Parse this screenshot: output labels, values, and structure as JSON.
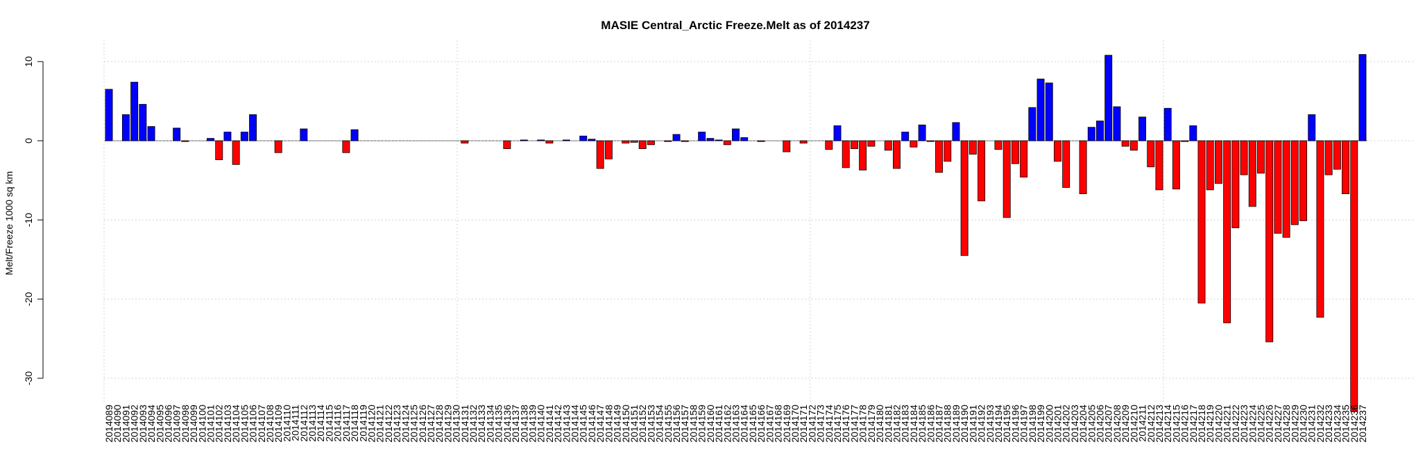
{
  "chart_data": {
    "type": "bar",
    "title": "MASIE Central_Arctic Freeze.Melt as of 2014237",
    "y_label": "Melt/Freeze 1000 sq km",
    "categories": [
      "2014089",
      "2014090",
      "2014091",
      "2014092",
      "2014093",
      "2014094",
      "2014095",
      "2014096",
      "2014097",
      "2014098",
      "2014099",
      "2014100",
      "2014101",
      "2014102",
      "2014103",
      "2014104",
      "2014105",
      "2014106",
      "2014107",
      "2014108",
      "2014109",
      "2014110",
      "2014111",
      "2014112",
      "2014113",
      "2014114",
      "2014115",
      "2014116",
      "2014117",
      "2014118",
      "2014119",
      "2014120",
      "2014121",
      "2014122",
      "2014123",
      "2014124",
      "2014125",
      "2014126",
      "2014127",
      "2014128",
      "2014129",
      "2014130",
      "2014131",
      "2014132",
      "2014133",
      "2014134",
      "2014135",
      "2014136",
      "2014137",
      "2014138",
      "2014139",
      "2014140",
      "2014141",
      "2014142",
      "2014143",
      "2014144",
      "2014145",
      "2014146",
      "2014147",
      "2014148",
      "2014149",
      "2014150",
      "2014151",
      "2014152",
      "2014153",
      "2014154",
      "2014155",
      "2014156",
      "2014157",
      "2014158",
      "2014159",
      "2014160",
      "2014161",
      "2014162",
      "2014163",
      "2014164",
      "2014165",
      "2014166",
      "2014167",
      "2014168",
      "2014169",
      "2014170",
      "2014171",
      "2014172",
      "2014173",
      "2014174",
      "2014175",
      "2014176",
      "2014177",
      "2014178",
      "2014179",
      "2014180",
      "2014181",
      "2014182",
      "2014183",
      "2014184",
      "2014185",
      "2014186",
      "2014187",
      "2014188",
      "2014189",
      "2014190",
      "2014191",
      "2014192",
      "2014193",
      "2014194",
      "2014195",
      "2014196",
      "2014197",
      "2014198",
      "2014199",
      "2014200",
      "2014201",
      "2014202",
      "2014203",
      "2014204",
      "2014205",
      "2014206",
      "2014207",
      "2014208",
      "2014209",
      "2014210",
      "2014211",
      "2014212",
      "2014213",
      "2014214",
      "2014215",
      "2014216",
      "2014217",
      "2014218",
      "2014219",
      "2014220",
      "2014221",
      "2014222",
      "2014223",
      "2014224",
      "2014225",
      "2014226",
      "2014227",
      "2014228",
      "2014229",
      "2014230",
      "2014231",
      "2014232",
      "2014233",
      "2014234",
      "2014235",
      "2014236",
      "2014237"
    ],
    "values": [
      6.5,
      0,
      3.3,
      7.4,
      4.6,
      1.8,
      0,
      0,
      1.6,
      -0.1,
      0,
      0,
      0.3,
      -2.4,
      1.1,
      -3.0,
      1.1,
      3.3,
      0,
      0,
      -1.5,
      0,
      0,
      1.5,
      0,
      0,
      0,
      0,
      -1.5,
      1.4,
      0,
      0,
      0,
      0,
      0,
      0,
      0,
      0,
      0,
      0,
      0,
      0,
      -0.3,
      0,
      0,
      0,
      0,
      -1.0,
      0,
      0.1,
      0,
      0.1,
      -0.3,
      0,
      0.1,
      0,
      0.6,
      0.2,
      -3.5,
      -2.3,
      0,
      -0.3,
      -0.2,
      -1.0,
      -0.5,
      0,
      -0.1,
      0.8,
      -0.1,
      0,
      1.1,
      0.3,
      0.1,
      -0.5,
      1.5,
      0.4,
      0,
      -0.1,
      0,
      0,
      -1.4,
      0,
      -0.3,
      0,
      0,
      -1.1,
      1.9,
      -3.4,
      -1.0,
      -3.7,
      -0.7,
      0,
      -1.2,
      -3.5,
      1.1,
      -0.8,
      2.0,
      -0.1,
      -4.0,
      -2.6,
      2.3,
      -14.5,
      -1.7,
      -7.6,
      0,
      -1.1,
      -9.7,
      -2.9,
      -4.6,
      4.2,
      7.8,
      7.3,
      -2.6,
      -5.9,
      0,
      -6.7,
      1.7,
      2.5,
      10.8,
      4.3,
      -0.7,
      -1.2,
      3.0,
      -3.3,
      -6.2,
      4.1,
      -6.1,
      -0.1,
      1.9,
      -20.5,
      -6.2,
      -5.4,
      -23.0,
      -11.0,
      -4.3,
      -8.3,
      -4.1,
      -25.4,
      -11.7,
      -12.2,
      -10.6,
      -10.1,
      3.3,
      -22.3,
      -4.3,
      -3.6,
      -6.7,
      -34.2,
      10.9
    ],
    "positive_color": "#0000ff",
    "negative_color": "#ff0000",
    "ylim": [
      -35,
      12
    ],
    "yticks": [
      -30,
      -20,
      -10,
      0,
      10
    ],
    "grid": true
  }
}
